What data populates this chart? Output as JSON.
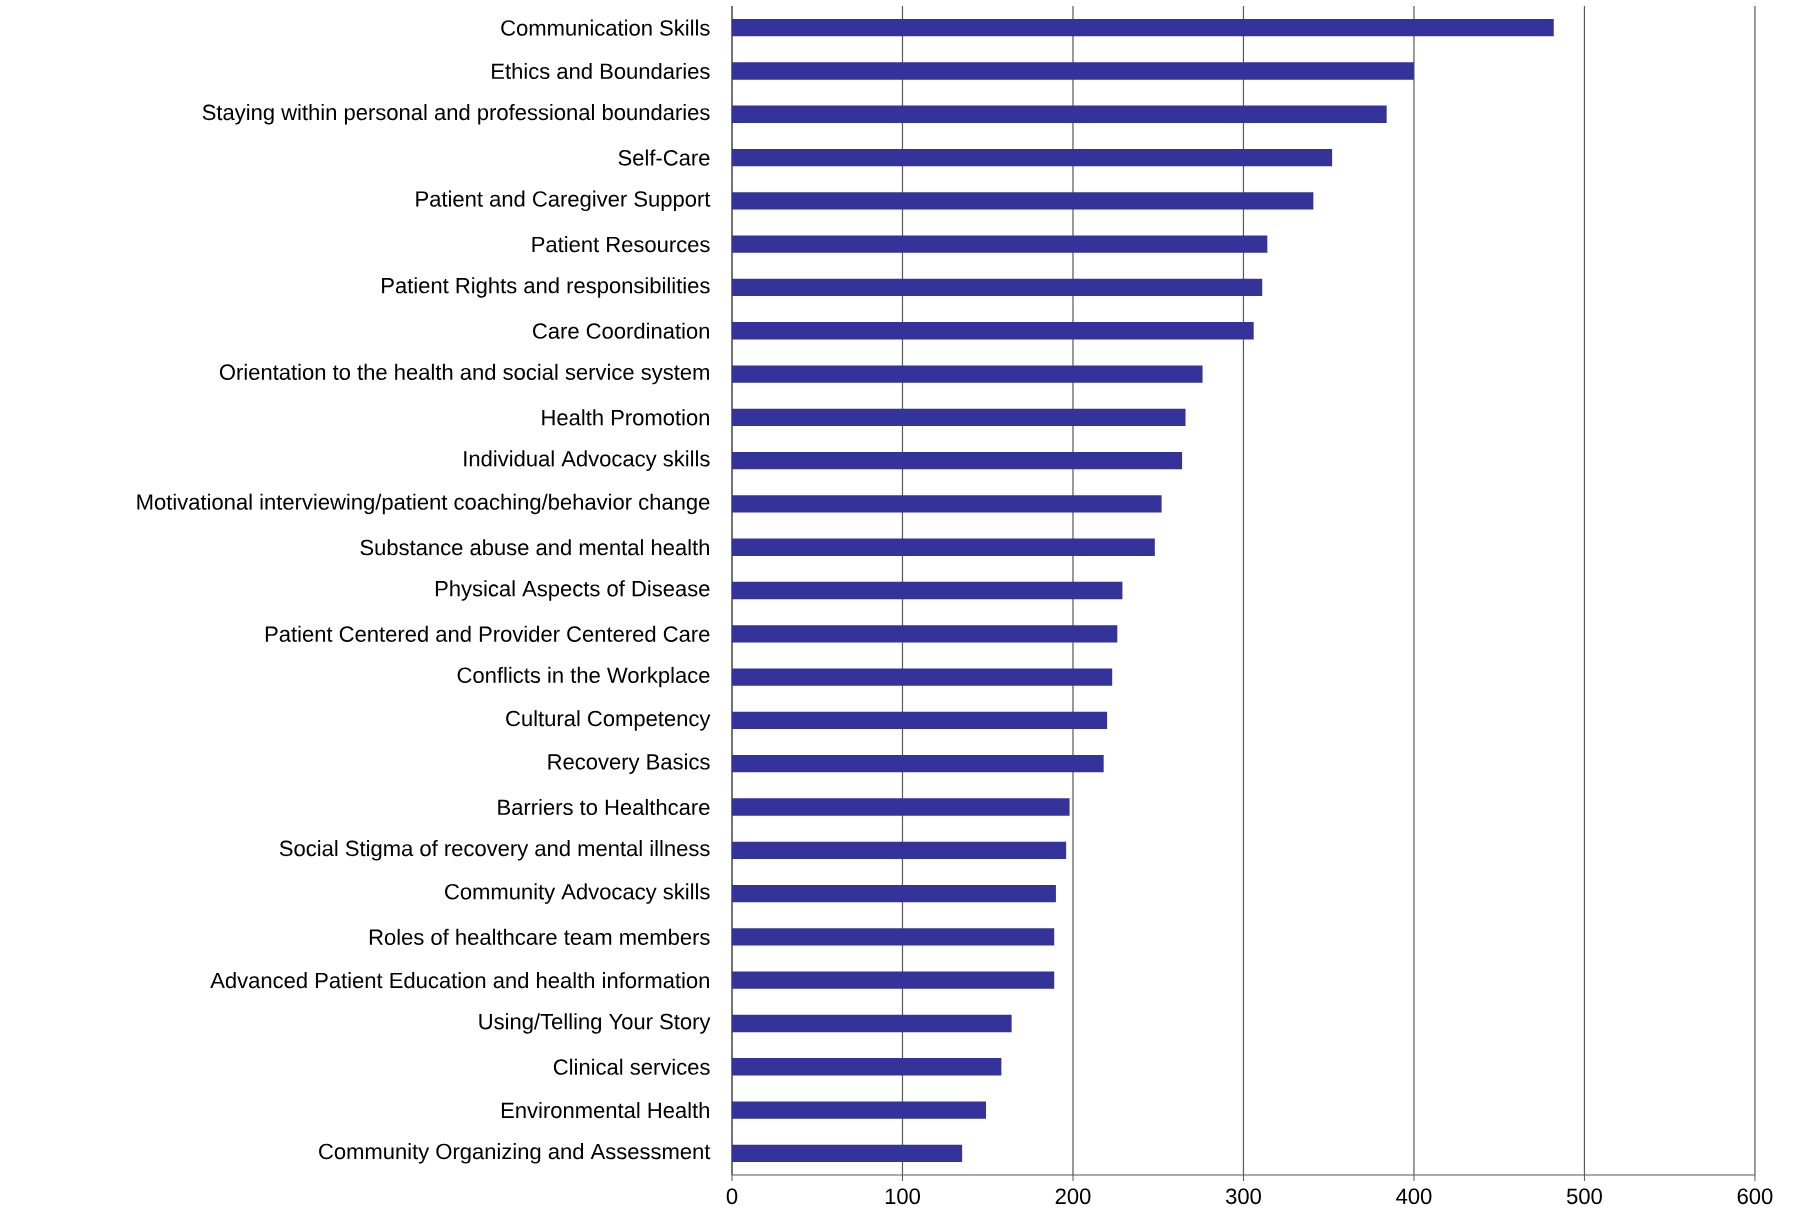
{
  "chart_data": {
    "type": "bar",
    "orientation": "horizontal",
    "color": "#333399",
    "categories": [
      "Communication Skills",
      "Ethics and Boundaries",
      "Staying within personal and professional boundaries",
      "Self-Care",
      "Patient and Caregiver Support",
      "Patient Resources",
      "Patient Rights and responsibilities",
      "Care Coordination",
      "Orientation to the health and social service system",
      "Health Promotion",
      "Individual Advocacy skills",
      "Motivational interviewing/patient coaching/behavior change",
      "Substance abuse and mental health",
      "Physical Aspects of Disease",
      "Patient Centered and Provider Centered Care",
      "Conflicts in the Workplace",
      "Cultural Competency",
      "Recovery Basics",
      "Barriers to Healthcare",
      "Social Stigma of recovery and mental illness",
      "Community Advocacy skills",
      "Roles of healthcare team members",
      "Advanced Patient Education and health information",
      "Using/Telling Your Story",
      "Clinical services",
      "Environmental Health",
      "Community Organizing and Assessment"
    ],
    "values": [
      482,
      400,
      384,
      352,
      341,
      314,
      311,
      306,
      276,
      266,
      264,
      252,
      248,
      229,
      226,
      223,
      220,
      218,
      198,
      196,
      190,
      189,
      189,
      164,
      158,
      149,
      135
    ],
    "xlim": [
      0,
      600
    ],
    "xticks": [
      0,
      100,
      200,
      300,
      400,
      500,
      600
    ],
    "grid": "x"
  }
}
